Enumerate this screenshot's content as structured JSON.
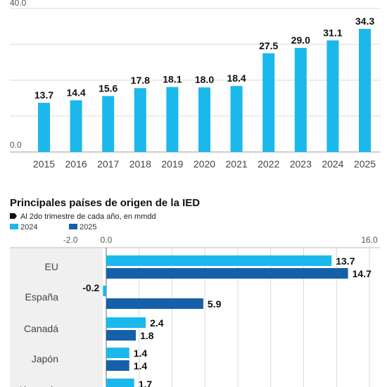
{
  "chart_data": [
    {
      "type": "bar",
      "categories": [
        "2015",
        "2016",
        "2017",
        "2018",
        "2019",
        "2020",
        "2021",
        "2022",
        "2023",
        "2024",
        "2025"
      ],
      "values": [
        13.7,
        14.4,
        15.6,
        17.8,
        18.1,
        18.0,
        18.4,
        27.5,
        29.0,
        31.1,
        34.3
      ],
      "value_labels": [
        "13.7",
        "14.4",
        "15.6",
        "17.8",
        "18.1",
        "18.0",
        "18.4",
        "27.5",
        "29.0",
        "31.1",
        "34.3"
      ],
      "y_tick_labels": {
        "top": "40.0",
        "bottom": "0.0"
      },
      "ylim": [
        0,
        40
      ],
      "color": "#1bb8ec",
      "grid": true
    },
    {
      "type": "bar",
      "orientation": "horizontal",
      "title": "Principales países de origen de la IED",
      "subtitle": "Al 2do trimestre de cada año, en mmdd",
      "categories": [
        "EU",
        "España",
        "Canadá",
        "Japón",
        "Alemania"
      ],
      "series": [
        {
          "name": "2024",
          "color": "#1bb8ec",
          "values": [
            13.7,
            -0.2,
            2.4,
            1.4,
            1.7
          ],
          "labels": [
            "13.7",
            "-0.2",
            "2.4",
            "1.4",
            "1.7"
          ]
        },
        {
          "name": "2025",
          "color": "#1560a8",
          "values": [
            14.7,
            5.9,
            1.8,
            1.4,
            null
          ],
          "labels": [
            "14.7",
            "5.9",
            "1.8",
            "1.4",
            ""
          ]
        }
      ],
      "x_tick_labels": [
        "-2.0",
        "0.0",
        "16.0"
      ],
      "xlim": [
        -2,
        16
      ],
      "legend": "top-left",
      "grid": true
    }
  ]
}
